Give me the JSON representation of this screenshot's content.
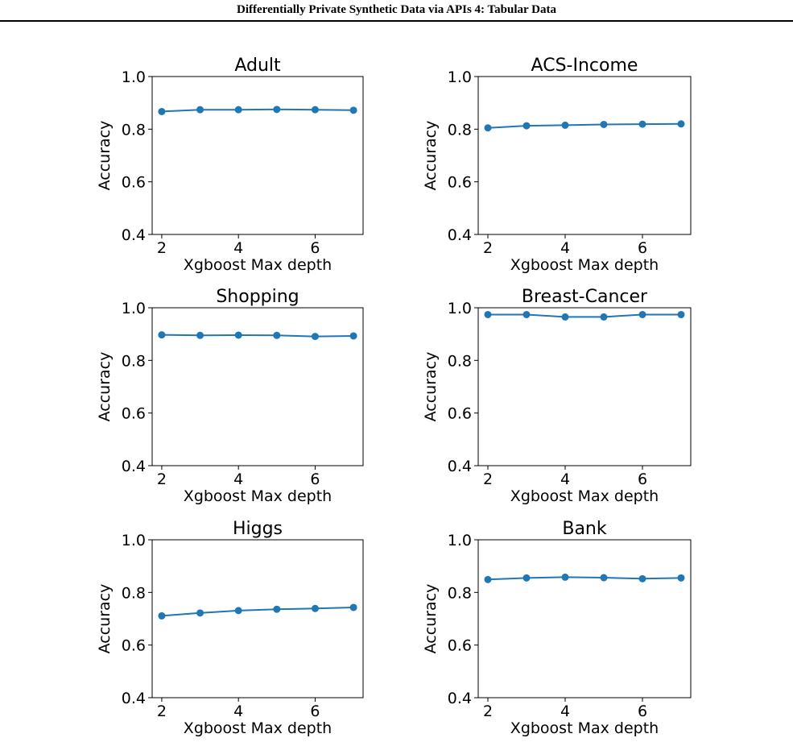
{
  "page": {
    "running_title": "Differentially Private Synthetic Data via APIs 4: Tabular Data"
  },
  "colors": {
    "series": "#1f77b4",
    "axes": "#000000"
  },
  "chart_data": [
    {
      "type": "line",
      "title": "Adult",
      "xlabel": "Xgboost Max depth",
      "ylabel": "Accuracy",
      "x": [
        2,
        3,
        4,
        5,
        6,
        7
      ],
      "y": [
        0.867,
        0.874,
        0.874,
        0.875,
        0.874,
        0.872
      ],
      "xticks": [
        2,
        4,
        6
      ],
      "yticks": [
        "0.4",
        "0.6",
        "0.8",
        "1.0"
      ],
      "ylim": [
        0.4,
        1.0
      ],
      "grid": false
    },
    {
      "type": "line",
      "title": "ACS-Income",
      "xlabel": "Xgboost Max depth",
      "ylabel": "Accuracy",
      "x": [
        2,
        3,
        4,
        5,
        6,
        7
      ],
      "y": [
        0.805,
        0.813,
        0.815,
        0.818,
        0.819,
        0.82
      ],
      "xticks": [
        2,
        4,
        6
      ],
      "yticks": [
        "0.4",
        "0.6",
        "0.8",
        "1.0"
      ],
      "ylim": [
        0.4,
        1.0
      ],
      "grid": false
    },
    {
      "type": "line",
      "title": "Shopping",
      "xlabel": "Xgboost Max depth",
      "ylabel": "Accuracy",
      "x": [
        2,
        3,
        4,
        5,
        6,
        7
      ],
      "y": [
        0.897,
        0.895,
        0.896,
        0.895,
        0.891,
        0.893
      ],
      "xticks": [
        2,
        4,
        6
      ],
      "yticks": [
        "0.4",
        "0.6",
        "0.8",
        "1.0"
      ],
      "ylim": [
        0.4,
        1.0
      ],
      "grid": false
    },
    {
      "type": "line",
      "title": "Breast-Cancer",
      "xlabel": "Xgboost Max depth",
      "ylabel": "Accuracy",
      "x": [
        2,
        3,
        4,
        5,
        6,
        7
      ],
      "y": [
        0.974,
        0.974,
        0.965,
        0.965,
        0.974,
        0.974
      ],
      "xticks": [
        2,
        4,
        6
      ],
      "yticks": [
        "0.4",
        "0.6",
        "0.8",
        "1.0"
      ],
      "ylim": [
        0.4,
        1.0
      ],
      "grid": false
    },
    {
      "type": "line",
      "title": "Higgs",
      "xlabel": "Xgboost Max depth",
      "ylabel": "Accuracy",
      "x": [
        2,
        3,
        4,
        5,
        6,
        7
      ],
      "y": [
        0.711,
        0.722,
        0.731,
        0.736,
        0.739,
        0.743
      ],
      "xticks": [
        2,
        4,
        6
      ],
      "yticks": [
        "0.4",
        "0.6",
        "0.8",
        "1.0"
      ],
      "ylim": [
        0.4,
        1.0
      ],
      "grid": false
    },
    {
      "type": "line",
      "title": "Bank",
      "xlabel": "Xgboost Max depth",
      "ylabel": "Accuracy",
      "x": [
        2,
        3,
        4,
        5,
        6,
        7
      ],
      "y": [
        0.849,
        0.855,
        0.858,
        0.856,
        0.852,
        0.855
      ],
      "xticks": [
        2,
        4,
        6
      ],
      "yticks": [
        "0.4",
        "0.6",
        "0.8",
        "1.0"
      ],
      "ylim": [
        0.4,
        1.0
      ],
      "grid": false
    }
  ]
}
